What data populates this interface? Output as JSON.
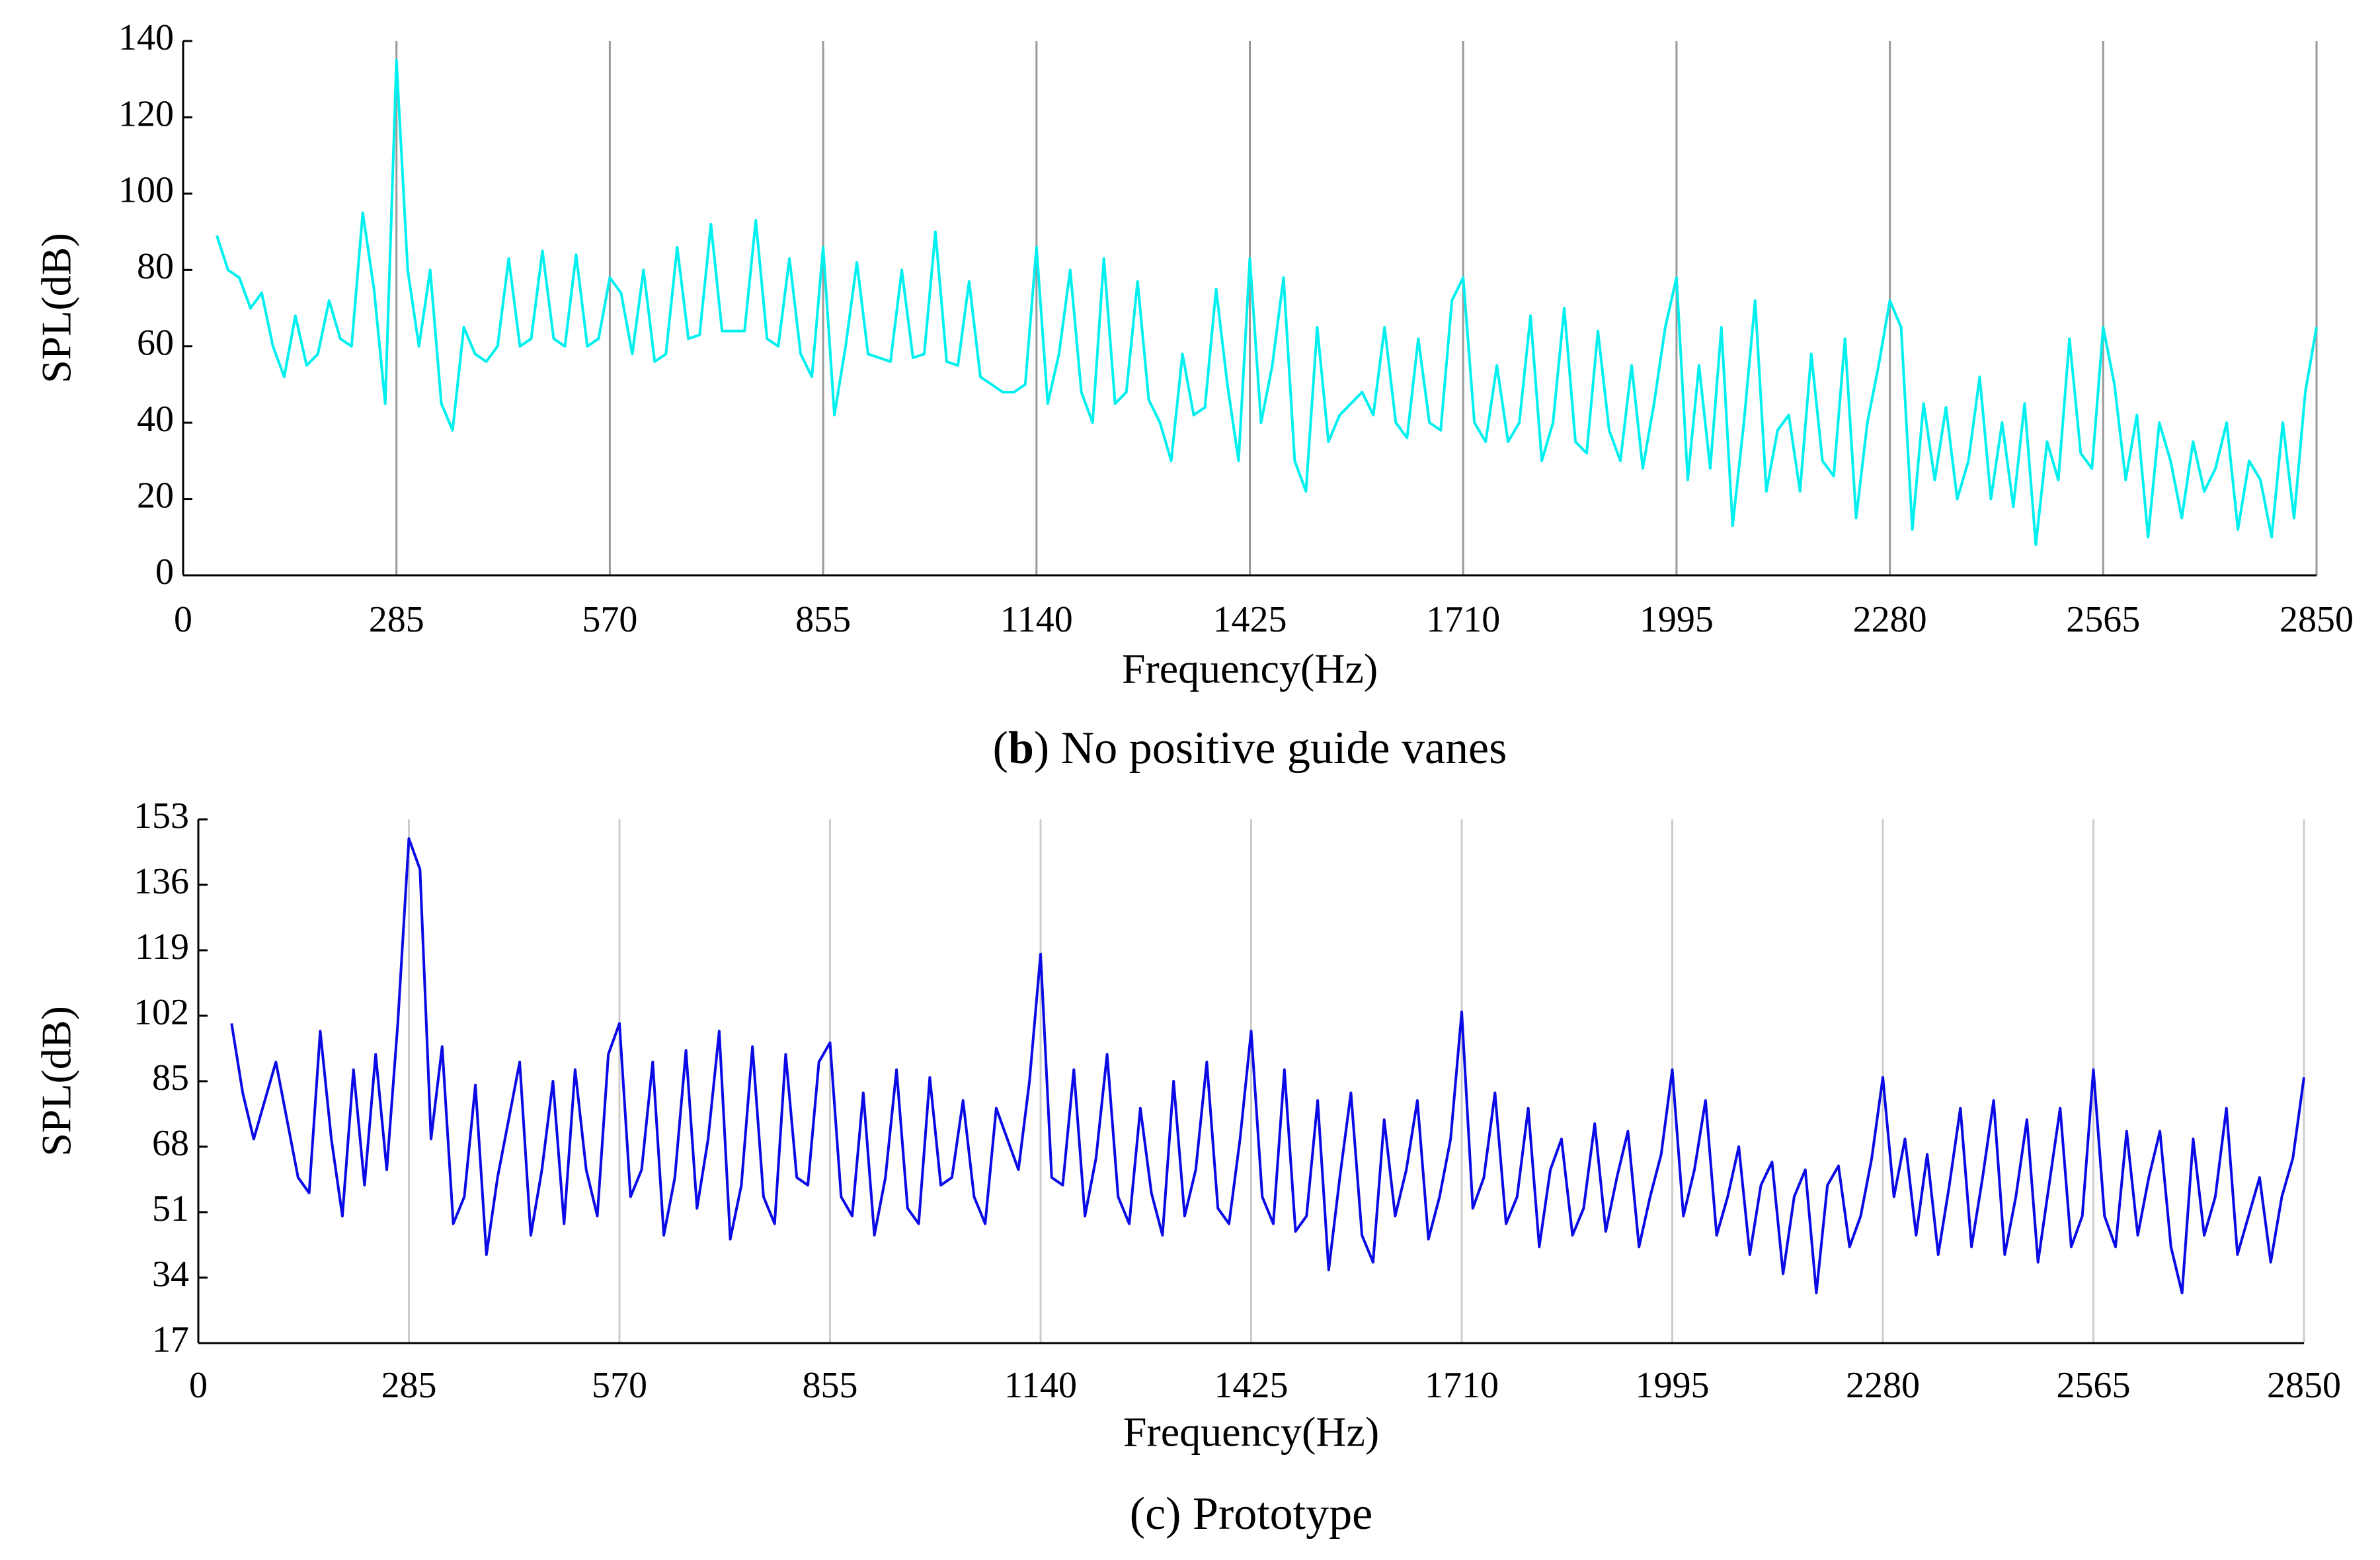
{
  "chart_data": [
    {
      "type": "line",
      "xlabel": "Frequency(Hz)",
      "ylabel": "SPL(dB)",
      "caption": {
        "open": "(",
        "letter": "b",
        "close": ") No positive guide vanes"
      },
      "caption_letter_bold": true,
      "color": "#00f0f0",
      "grid": true,
      "grid_color": "#999999",
      "xlim": [
        0,
        2850
      ],
      "xticks": [
        0,
        285,
        570,
        855,
        1140,
        1425,
        1710,
        1995,
        2280,
        2565,
        2850
      ],
      "ylim": [
        0,
        140
      ],
      "yticks": [
        0,
        20,
        40,
        60,
        80,
        100,
        120,
        140
      ],
      "x": [
        45,
        60,
        75,
        90,
        105,
        120,
        135,
        150,
        165,
        180,
        195,
        210,
        225,
        240,
        255,
        270,
        285,
        300,
        315,
        330,
        345,
        360,
        375,
        390,
        405,
        420,
        435,
        450,
        465,
        480,
        495,
        510,
        525,
        540,
        555,
        570,
        585,
        600,
        615,
        630,
        645,
        660,
        675,
        690,
        705,
        720,
        735,
        750,
        765,
        780,
        795,
        810,
        825,
        840,
        855,
        870,
        885,
        900,
        915,
        930,
        945,
        960,
        975,
        990,
        1005,
        1020,
        1035,
        1050,
        1065,
        1080,
        1095,
        1110,
        1125,
        1140,
        1155,
        1170,
        1185,
        1200,
        1215,
        1230,
        1245,
        1260,
        1275,
        1290,
        1305,
        1320,
        1335,
        1350,
        1365,
        1380,
        1395,
        1410,
        1425,
        1440,
        1455,
        1470,
        1485,
        1500,
        1515,
        1530,
        1545,
        1560,
        1575,
        1590,
        1605,
        1620,
        1635,
        1650,
        1665,
        1680,
        1695,
        1710,
        1725,
        1740,
        1755,
        1770,
        1785,
        1800,
        1815,
        1830,
        1845,
        1860,
        1875,
        1890,
        1905,
        1920,
        1935,
        1950,
        1965,
        1980,
        1995,
        2010,
        2025,
        2040,
        2055,
        2070,
        2085,
        2100,
        2115,
        2130,
        2145,
        2160,
        2175,
        2190,
        2205,
        2220,
        2235,
        2250,
        2265,
        2280,
        2295,
        2310,
        2325,
        2340,
        2355,
        2370,
        2385,
        2400,
        2415,
        2430,
        2445,
        2460,
        2475,
        2490,
        2505,
        2520,
        2535,
        2550,
        2565,
        2580,
        2595,
        2610,
        2625,
        2640,
        2655,
        2670,
        2685,
        2700,
        2715,
        2730,
        2745,
        2760,
        2775,
        2790,
        2805,
        2820,
        2835,
        2850
      ],
      "values": [
        89,
        80,
        78,
        70,
        74,
        60,
        52,
        68,
        55,
        58,
        72,
        62,
        60,
        95,
        75,
        45,
        135,
        80,
        60,
        80,
        45,
        38,
        65,
        58,
        56,
        60,
        83,
        60,
        62,
        85,
        62,
        60,
        84,
        60,
        62,
        78,
        74,
        58,
        80,
        56,
        58,
        86,
        62,
        63,
        92,
        64,
        64,
        64,
        93,
        62,
        60,
        83,
        58,
        52,
        86,
        42,
        60,
        82,
        58,
        57,
        56,
        80,
        57,
        58,
        90,
        56,
        55,
        77,
        52,
        50,
        48,
        48,
        50,
        86,
        45,
        58,
        80,
        48,
        40,
        83,
        45,
        48,
        77,
        46,
        40,
        30,
        58,
        42,
        44,
        75,
        50,
        30,
        83,
        40,
        55,
        78,
        30,
        22,
        65,
        35,
        42,
        45,
        48,
        42,
        65,
        40,
        36,
        62,
        40,
        38,
        72,
        78,
        40,
        35,
        55,
        35,
        40,
        68,
        30,
        40,
        70,
        35,
        32,
        64,
        38,
        30,
        55,
        28,
        45,
        65,
        78,
        25,
        55,
        28,
        65,
        13,
        40,
        72,
        22,
        38,
        42,
        22,
        58,
        30,
        26,
        62,
        15,
        40,
        55,
        72,
        65,
        12,
        45,
        25,
        44,
        20,
        30,
        52,
        20,
        40,
        18,
        45,
        8,
        35,
        25,
        62,
        32,
        28,
        65,
        50,
        25,
        42,
        10,
        40,
        30,
        15,
        35,
        22,
        28,
        40,
        12,
        30,
        25,
        10,
        40,
        15,
        48,
        65
      ]
    },
    {
      "type": "line",
      "xlabel": "Frequency(Hz)",
      "ylabel": "SPL(dB)",
      "caption": {
        "open": "(",
        "letter": "c",
        "close": ") Prototype"
      },
      "caption_letter_bold": false,
      "color": "#0a0ae6",
      "grid": true,
      "grid_color": "#cccccc",
      "xlim": [
        0,
        2850
      ],
      "xticks": [
        0,
        285,
        570,
        855,
        1140,
        1425,
        1710,
        1995,
        2280,
        2565,
        2850
      ],
      "ylim": [
        17,
        153
      ],
      "yticks": [
        17,
        34,
        51,
        68,
        85,
        102,
        119,
        136,
        153
      ],
      "x": [
        45,
        60,
        75,
        90,
        105,
        120,
        135,
        150,
        165,
        180,
        195,
        210,
        225,
        240,
        255,
        270,
        285,
        300,
        315,
        330,
        345,
        360,
        375,
        390,
        405,
        420,
        435,
        450,
        465,
        480,
        495,
        510,
        525,
        540,
        555,
        570,
        585,
        600,
        615,
        630,
        645,
        660,
        675,
        690,
        705,
        720,
        735,
        750,
        765,
        780,
        795,
        810,
        825,
        840,
        855,
        870,
        885,
        900,
        915,
        930,
        945,
        960,
        975,
        990,
        1005,
        1020,
        1035,
        1050,
        1065,
        1080,
        1095,
        1110,
        1125,
        1140,
        1155,
        1170,
        1185,
        1200,
        1215,
        1230,
        1245,
        1260,
        1275,
        1290,
        1305,
        1320,
        1335,
        1350,
        1365,
        1380,
        1395,
        1410,
        1425,
        1440,
        1455,
        1470,
        1485,
        1500,
        1515,
        1530,
        1545,
        1560,
        1575,
        1590,
        1605,
        1620,
        1635,
        1650,
        1665,
        1680,
        1695,
        1710,
        1725,
        1740,
        1755,
        1770,
        1785,
        1800,
        1815,
        1830,
        1845,
        1860,
        1875,
        1890,
        1905,
        1920,
        1935,
        1950,
        1965,
        1980,
        1995,
        2010,
        2025,
        2040,
        2055,
        2070,
        2085,
        2100,
        2115,
        2130,
        2145,
        2160,
        2175,
        2190,
        2205,
        2220,
        2235,
        2250,
        2265,
        2280,
        2295,
        2310,
        2325,
        2340,
        2355,
        2370,
        2385,
        2400,
        2415,
        2430,
        2445,
        2460,
        2475,
        2490,
        2505,
        2520,
        2535,
        2550,
        2565,
        2580,
        2595,
        2610,
        2625,
        2640,
        2655,
        2670,
        2685,
        2700,
        2715,
        2730,
        2745,
        2760,
        2775,
        2790,
        2805,
        2820,
        2835,
        2850
      ],
      "values": [
        100,
        82,
        70,
        80,
        90,
        75,
        60,
        56,
        98,
        70,
        50,
        88,
        58,
        92,
        62,
        100,
        148,
        140,
        70,
        94,
        48,
        55,
        84,
        40,
        60,
        75,
        90,
        45,
        62,
        85,
        48,
        88,
        62,
        50,
        92,
        100,
        55,
        62,
        90,
        45,
        60,
        93,
        52,
        70,
        98,
        44,
        58,
        94,
        55,
        48,
        92,
        60,
        58,
        90,
        95,
        55,
        50,
        82,
        45,
        60,
        88,
        52,
        48,
        86,
        58,
        60,
        80,
        55,
        48,
        78,
        70,
        62,
        85,
        118,
        60,
        58,
        88,
        50,
        65,
        92,
        55,
        48,
        78,
        56,
        45,
        85,
        50,
        62,
        90,
        52,
        48,
        70,
        98,
        55,
        48,
        88,
        46,
        50,
        80,
        36,
        60,
        82,
        45,
        38,
        75,
        50,
        62,
        80,
        44,
        55,
        70,
        103,
        52,
        60,
        82,
        48,
        55,
        78,
        42,
        62,
        70,
        45,
        52,
        74,
        46,
        60,
        72,
        42,
        55,
        66,
        88,
        50,
        62,
        80,
        45,
        55,
        68,
        40,
        58,
        64,
        35,
        55,
        62,
        30,
        58,
        63,
        42,
        50,
        65,
        86,
        55,
        70,
        45,
        66,
        40,
        58,
        78,
        42,
        60,
        80,
        40,
        55,
        75,
        38,
        58,
        78,
        42,
        50,
        88,
        50,
        42,
        72,
        45,
        60,
        72,
        42,
        30,
        70,
        45,
        55,
        78,
        40,
        50,
        60,
        38,
        55,
        65,
        86
      ]
    }
  ]
}
